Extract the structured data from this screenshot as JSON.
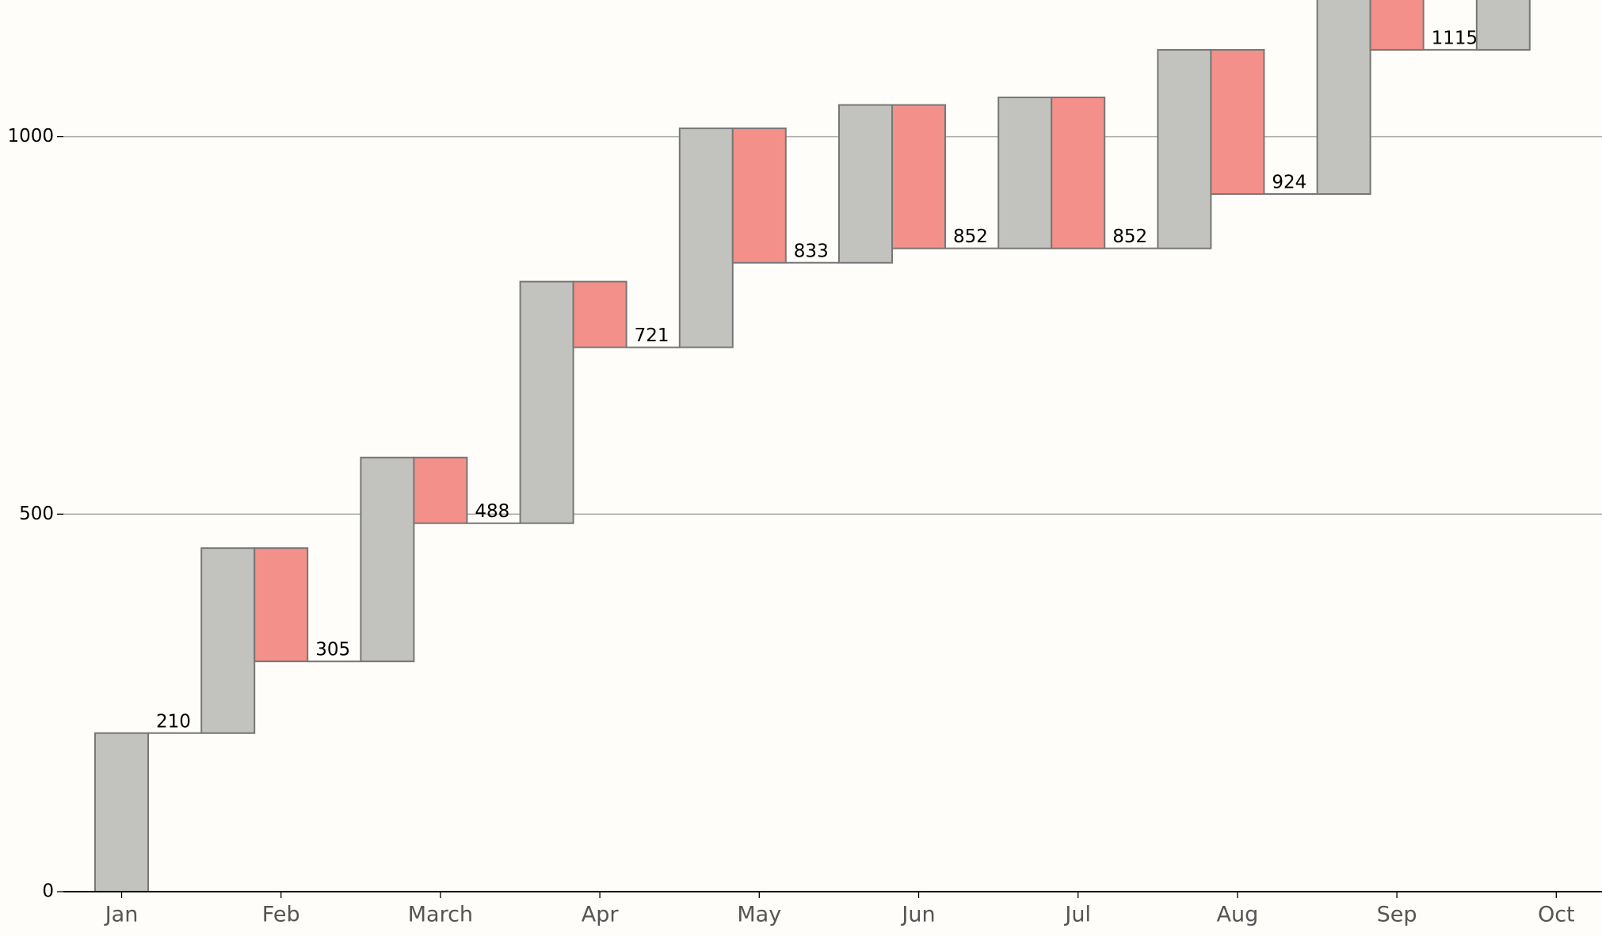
{
  "chart_data": {
    "type": "waterfall",
    "categories": [
      "Jan",
      "Feb",
      "March",
      "Apr",
      "May",
      "Jun",
      "Jul",
      "Aug",
      "Sep",
      "Oct"
    ],
    "increase": {
      "color": "#c2c2be",
      "values": [
        210,
        245,
        270,
        320,
        290,
        209,
        200,
        263,
        376,
        300
      ]
    },
    "decrease": {
      "color": "#f4908a",
      "values": [
        null,
        150,
        87,
        87,
        178,
        190,
        200,
        191,
        185,
        null
      ]
    },
    "totals": [
      210,
      305,
      488,
      721,
      833,
      852,
      852,
      924,
      1115,
      null
    ],
    "ylim": [
      0,
      1181
    ],
    "yticks": [
      0,
      500,
      1000
    ],
    "grid": true
  }
}
